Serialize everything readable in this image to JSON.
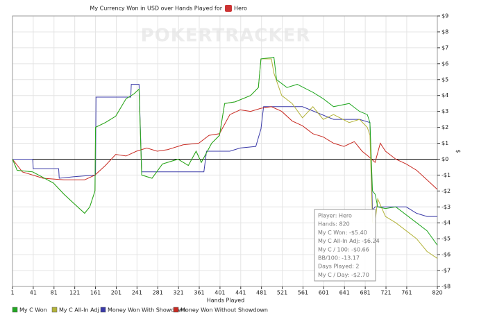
{
  "chart_data": {
    "type": "line",
    "title": "My Currency Won in USD over Hands Played for",
    "player": "Hero",
    "watermark": "POKERTRACKER",
    "x_label": "Hands Played",
    "y_label": "$",
    "xlim": [
      1,
      820
    ],
    "xticks": [
      1,
      41,
      81,
      121,
      161,
      201,
      241,
      281,
      321,
      361,
      401,
      441,
      481,
      521,
      561,
      601,
      641,
      681,
      721,
      761,
      820
    ],
    "ylim": [
      -8,
      9
    ],
    "yticks": [
      {
        "value": 9,
        "label": "$9"
      },
      {
        "value": 8,
        "label": "$8"
      },
      {
        "value": 7,
        "label": "$7"
      },
      {
        "value": 6,
        "label": "$6"
      },
      {
        "value": 5,
        "label": "$5"
      },
      {
        "value": 4,
        "label": "$4"
      },
      {
        "value": 3,
        "label": "$3"
      },
      {
        "value": 2,
        "label": "$2"
      },
      {
        "value": 1,
        "label": "$1"
      },
      {
        "value": 0,
        "label": "$0"
      },
      {
        "value": -1,
        "label": "-$1"
      },
      {
        "value": -2,
        "label": "-$2"
      },
      {
        "value": -3,
        "label": "-$3"
      },
      {
        "value": -4,
        "label": "-$4"
      },
      {
        "value": -5,
        "label": "-$5"
      },
      {
        "value": -6,
        "label": "-$6"
      },
      {
        "value": -7,
        "label": "-$7"
      },
      {
        "value": -8,
        "label": "-$8"
      }
    ],
    "grid": true,
    "y_axis_side": "right",
    "series": [
      {
        "name": "My C Won",
        "color": "#22a722",
        "x": [
          1,
          10,
          40,
          80,
          100,
          120,
          140,
          150,
          160,
          161,
          180,
          200,
          220,
          235,
          245,
          250,
          270,
          290,
          320,
          340,
          355,
          365,
          385,
          400,
          410,
          430,
          460,
          475,
          480,
          505,
          510,
          530,
          550,
          580,
          600,
          620,
          650,
          670,
          685,
          690,
          695,
          700,
          705,
          720,
          740,
          760,
          780,
          800,
          820
        ],
        "values": [
          0,
          -0.7,
          -0.8,
          -1.5,
          -2.2,
          -2.8,
          -3.4,
          -3.0,
          -2.0,
          2.0,
          2.3,
          2.7,
          3.8,
          4.1,
          4.4,
          -1.0,
          -1.2,
          -0.3,
          0.0,
          -0.4,
          0.5,
          -0.2,
          1.0,
          1.5,
          3.5,
          3.6,
          4.0,
          4.5,
          6.3,
          6.4,
          5.0,
          4.5,
          4.7,
          4.2,
          3.8,
          3.3,
          3.5,
          3.0,
          2.8,
          2.3,
          -2.0,
          -2.2,
          -3.0,
          -3.1,
          -3.0,
          -3.5,
          -4.0,
          -4.5,
          -5.4
        ]
      },
      {
        "name": "My C All-In Adj",
        "color": "#b3b33a",
        "x": [
          1,
          10,
          40,
          80,
          100,
          120,
          140,
          150,
          160,
          161,
          180,
          200,
          220,
          235,
          245,
          250,
          270,
          290,
          320,
          340,
          355,
          365,
          385,
          400,
          410,
          430,
          460,
          475,
          480,
          500,
          505,
          520,
          540,
          560,
          580,
          600,
          620,
          650,
          670,
          685,
          690,
          695,
          700,
          705,
          720,
          740,
          760,
          780,
          800,
          820
        ],
        "values": [
          0,
          -0.7,
          -0.8,
          -1.5,
          -2.2,
          -2.8,
          -3.4,
          -3.0,
          -2.0,
          2.0,
          2.3,
          2.7,
          3.8,
          4.1,
          4.4,
          -1.0,
          -1.2,
          -0.3,
          0.0,
          -0.4,
          0.5,
          -0.2,
          1.0,
          1.5,
          3.5,
          3.6,
          4.0,
          4.5,
          6.3,
          6.3,
          5.4,
          4.0,
          3.5,
          2.6,
          3.3,
          2.5,
          2.8,
          2.3,
          2.5,
          2.0,
          1.5,
          -4.0,
          -4.0,
          -2.5,
          -3.6,
          -4.0,
          -4.5,
          -5.0,
          -5.8,
          -6.24
        ]
      },
      {
        "name": "Money Won With Showdown",
        "color": "#3a3aa8",
        "x": [
          1,
          40,
          41,
          90,
          91,
          120,
          161,
          162,
          229,
          230,
          245,
          250,
          370,
          375,
          420,
          440,
          470,
          480,
          485,
          560,
          620,
          670,
          690,
          695,
          700,
          760,
          780,
          800,
          820
        ],
        "values": [
          0,
          0,
          -0.6,
          -0.6,
          -1.2,
          -1.1,
          -1.0,
          3.9,
          3.9,
          4.7,
          4.7,
          -0.8,
          -0.8,
          0.5,
          0.5,
          0.7,
          0.8,
          1.9,
          3.3,
          3.3,
          2.5,
          2.5,
          2.3,
          -3.2,
          -3.0,
          -3.0,
          -3.4,
          -3.6,
          -3.6
        ]
      },
      {
        "name": "Money Won Without Showdown",
        "color": "#c82a22",
        "x": [
          1,
          20,
          60,
          100,
          140,
          160,
          180,
          200,
          220,
          240,
          260,
          280,
          300,
          330,
          360,
          380,
          400,
          420,
          440,
          460,
          480,
          500,
          520,
          540,
          560,
          580,
          600,
          620,
          640,
          660,
          675,
          690,
          700,
          710,
          720,
          740,
          760,
          780,
          800,
          820
        ],
        "values": [
          0,
          -0.8,
          -1.2,
          -1.3,
          -1.3,
          -1.0,
          -0.4,
          0.3,
          0.2,
          0.5,
          0.7,
          0.5,
          0.6,
          0.9,
          1.0,
          1.5,
          1.6,
          2.8,
          3.1,
          3.0,
          3.2,
          3.3,
          3.0,
          2.4,
          2.1,
          1.6,
          1.4,
          1.0,
          0.8,
          1.1,
          0.5,
          0.1,
          -0.2,
          1.0,
          0.5,
          0.0,
          -0.3,
          -0.7,
          -1.3,
          -1.9
        ]
      }
    ],
    "tooltip": [
      "Player: Hero",
      "Hands: 820",
      "My C Won: -$5.40",
      "My C All-In Adj: -$6.24",
      "My C / 100: -$0.66",
      "BB/100: -13.17",
      "Days Played: 2",
      "My C / Day: -$2.70"
    ]
  }
}
